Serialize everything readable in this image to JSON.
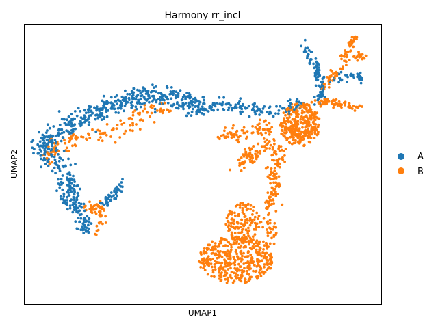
{
  "chart_data": {
    "type": "scatter",
    "title": "Harmony rr_incl",
    "xlabel": "UMAP1",
    "ylabel": "UMAP2",
    "xticks": false,
    "yticks": false,
    "grid": false,
    "legend_position": "right-center",
    "series": [
      {
        "name": "A",
        "color": "#1f77b4"
      },
      {
        "name": "B",
        "color": "#ff7f0e"
      }
    ],
    "regions": [
      {
        "series": "A",
        "shape": "path",
        "n": 520,
        "spread": 14,
        "points": [
          [
            95,
            245
          ],
          [
            70,
            230
          ],
          [
            60,
            215
          ],
          [
            75,
            200
          ],
          [
            100,
            185
          ],
          [
            125,
            170
          ],
          [
            150,
            160
          ],
          [
            175,
            150
          ],
          [
            200,
            143
          ],
          [
            225,
            140
          ],
          [
            250,
            142
          ],
          [
            275,
            150
          ],
          [
            300,
            160
          ]
        ]
      },
      {
        "series": "A",
        "shape": "path",
        "n": 120,
        "spread": 9,
        "points": [
          [
            100,
            255
          ],
          [
            105,
            275
          ],
          [
            110,
            295
          ],
          [
            118,
            315
          ],
          [
            125,
            340
          ]
        ]
      },
      {
        "series": "A",
        "shape": "path",
        "n": 30,
        "spread": 5,
        "points": [
          [
            100,
            305
          ],
          [
            95,
            295
          ],
          [
            90,
            280
          ],
          [
            85,
            265
          ]
        ]
      },
      {
        "series": "A",
        "shape": "path",
        "n": 120,
        "spread": 9,
        "points": [
          [
            300,
            160
          ],
          [
            330,
            152
          ],
          [
            360,
            158
          ],
          [
            390,
            163
          ],
          [
            420,
            160
          ],
          [
            440,
            150
          ]
        ]
      },
      {
        "series": "A",
        "shape": "path",
        "n": 40,
        "spread": 7,
        "points": [
          [
            150,
            300
          ],
          [
            165,
            285
          ],
          [
            180,
            270
          ]
        ]
      },
      {
        "series": "A",
        "shape": "path",
        "n": 90,
        "spread": 6,
        "points": [
          [
            448,
            70
          ],
          [
            455,
            85
          ],
          [
            463,
            100
          ],
          [
            468,
            118
          ],
          [
            470,
            135
          ],
          [
            463,
            150
          ]
        ]
      },
      {
        "series": "A",
        "shape": "path",
        "n": 40,
        "spread": 5,
        "points": [
          [
            480,
            120
          ],
          [
            500,
            112
          ],
          [
            520,
            110
          ],
          [
            528,
            115
          ]
        ]
      },
      {
        "series": "B",
        "shape": "path",
        "n": 130,
        "spread": 12,
        "points": [
          [
            70,
            235
          ],
          [
            80,
            215
          ],
          [
            95,
            205
          ],
          [
            115,
            200
          ],
          [
            140,
            200
          ],
          [
            165,
            192
          ],
          [
            195,
            180
          ],
          [
            220,
            160
          ],
          [
            245,
            158
          ]
        ]
      },
      {
        "series": "B",
        "shape": "path",
        "n": 60,
        "spread": 7,
        "points": [
          [
            125,
            305
          ],
          [
            140,
            300
          ],
          [
            150,
            310
          ],
          [
            148,
            325
          ],
          [
            140,
            340
          ]
        ]
      },
      {
        "series": "B",
        "shape": "path",
        "n": 70,
        "spread": 10,
        "points": [
          [
            320,
            200
          ],
          [
            345,
            195
          ],
          [
            370,
            190
          ],
          [
            395,
            185
          ]
        ]
      },
      {
        "series": "B",
        "shape": "path",
        "n": 80,
        "spread": 10,
        "points": [
          [
            350,
            240
          ],
          [
            365,
            228
          ],
          [
            378,
            218
          ],
          [
            395,
            210
          ]
        ]
      },
      {
        "series": "B",
        "shape": "blob",
        "n": 320,
        "cx": 438,
        "cy": 182,
        "rx": 30,
        "ry": 32
      },
      {
        "series": "B",
        "shape": "path",
        "n": 70,
        "spread": 5,
        "points": [
          [
            460,
            150
          ],
          [
            485,
            150
          ],
          [
            510,
            155
          ],
          [
            528,
            160
          ]
        ]
      },
      {
        "series": "B",
        "shape": "path",
        "n": 80,
        "spread": 6,
        "points": [
          [
            470,
            130
          ],
          [
            485,
            112
          ],
          [
            500,
            95
          ],
          [
            510,
            75
          ],
          [
            517,
            57
          ]
        ]
      },
      {
        "series": "B",
        "shape": "path",
        "n": 20,
        "spread": 4,
        "points": [
          [
            515,
            85
          ],
          [
            525,
            82
          ],
          [
            533,
            85
          ]
        ]
      },
      {
        "series": "B",
        "shape": "path",
        "n": 140,
        "spread": 9,
        "points": [
          [
            410,
            215
          ],
          [
            405,
            235
          ],
          [
            400,
            255
          ],
          [
            398,
            275
          ],
          [
            395,
            295
          ],
          [
            393,
            315
          ],
          [
            395,
            340
          ],
          [
            392,
            360
          ]
        ]
      },
      {
        "series": "B",
        "shape": "blob",
        "n": 130,
        "cx": 355,
        "cy": 325,
        "rx": 25,
        "ry": 28
      },
      {
        "series": "B",
        "shape": "blob",
        "n": 420,
        "cx": 345,
        "cy": 380,
        "rx": 55,
        "ry": 35
      }
    ]
  }
}
